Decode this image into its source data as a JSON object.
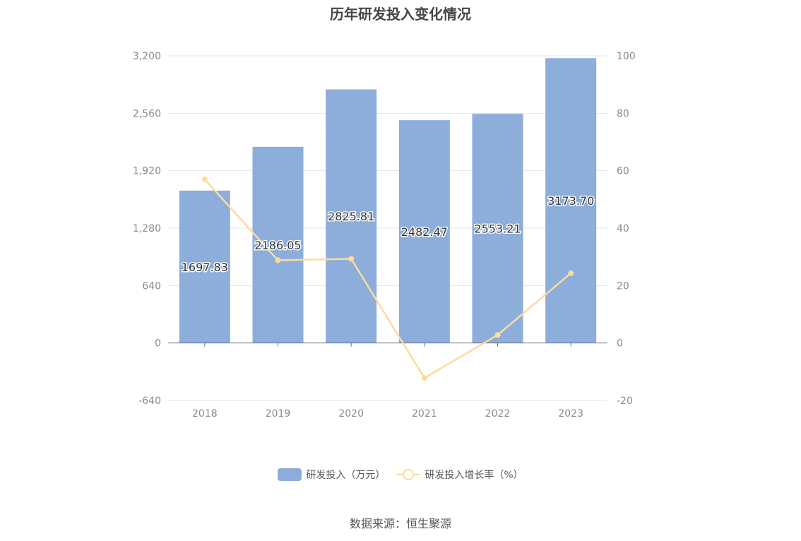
{
  "title": "历年研发投入变化情况",
  "source": "数据来源：恒生聚源",
  "colors": {
    "bar": "#8dadda",
    "line": "#fddb9d",
    "axis_text": "#8a8a8a",
    "grid": "#e0e6f1"
  },
  "legend": {
    "bar_label": "研发投入（万元）",
    "line_label": "研发投入增长率（%）"
  },
  "chart_data": {
    "type": "bar",
    "categories": [
      "2018",
      "2019",
      "2020",
      "2021",
      "2022",
      "2023"
    ],
    "series": [
      {
        "name": "研发投入（万元）",
        "type": "bar",
        "axis": "left",
        "values": [
          1697.83,
          2186.05,
          2825.81,
          2482.47,
          2553.21,
          3173.7
        ],
        "labels": [
          "1697.83",
          "2186.05",
          "2825.81",
          "2482.47",
          "2553.21",
          "3173.70"
        ]
      },
      {
        "name": "研发投入增长率（%）",
        "type": "line",
        "axis": "right",
        "values": [
          57,
          28.8,
          29.3,
          -12.2,
          2.8,
          24.3
        ]
      }
    ],
    "y_left": {
      "ylim": [
        -640,
        3200
      ],
      "ticks": [
        -640,
        0,
        640,
        1280,
        1920,
        2560,
        3200
      ],
      "tick_labels": [
        "-640",
        "0",
        "640",
        "1,280",
        "1,920",
        "2,560",
        "3,200"
      ]
    },
    "y_right": {
      "ylim": [
        -20,
        100
      ],
      "ticks": [
        -20,
        0,
        20,
        40,
        60,
        80,
        100
      ],
      "tick_labels": [
        "-20",
        "0",
        "20",
        "40",
        "60",
        "80",
        "100"
      ]
    },
    "grid": true,
    "legend_position": "bottom"
  }
}
